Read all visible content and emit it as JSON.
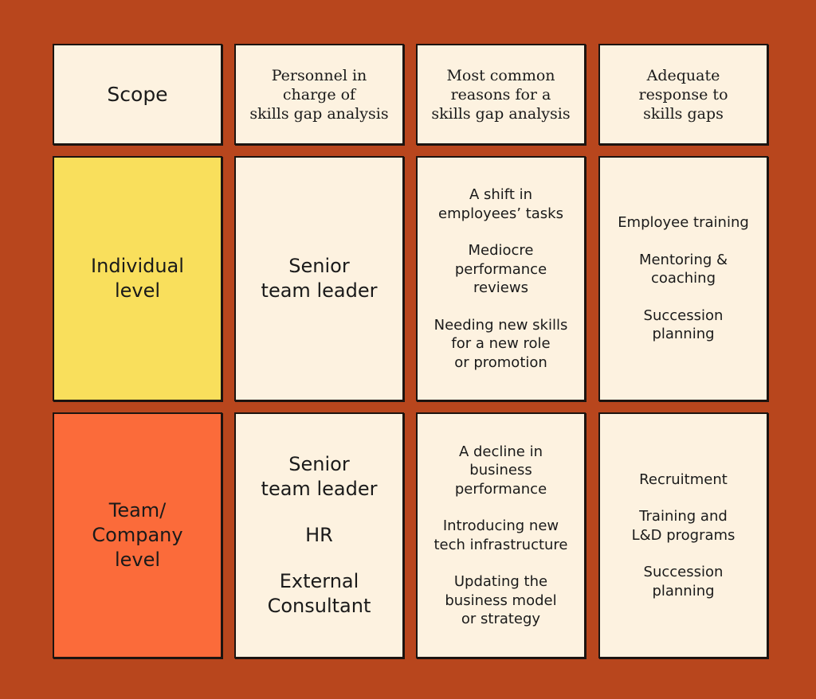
{
  "headers": {
    "scope": "Scope",
    "personnel": "Personnel in\ncharge of\nskills gap analysis",
    "reasons": "Most common\nreasons for a\nskills gap analysis",
    "response": "Adequate\nresponse to\nskills gaps"
  },
  "rows": [
    {
      "level": "Individual\nlevel",
      "level_color": "#f9df5c",
      "personnel": [
        "Senior\nteam leader"
      ],
      "reasons": [
        "A shift in\nemployees’ tasks",
        "Mediocre\nperformance\nreviews",
        "Needing new skills\nfor a new role\nor promotion"
      ],
      "responses": [
        "Employee training",
        "Mentoring &\ncoaching",
        "Succession\nplanning"
      ]
    },
    {
      "level": "Team/\nCompany\nlevel",
      "level_color": "#fb6b3a",
      "personnel": [
        "Senior\nteam leader",
        "HR",
        "External\nConsultant"
      ],
      "reasons": [
        "A decline in\nbusiness\nperformance",
        "Introducing new\ntech infrastructure",
        "Updating the\nbusiness model\nor strategy"
      ],
      "responses": [
        "Recruitment",
        "Training and\nL&D programs",
        "Succession\nplanning"
      ]
    }
  ],
  "colors": {
    "background": "#b8461d",
    "card": "#fdf2e0",
    "border": "#1c1410"
  }
}
